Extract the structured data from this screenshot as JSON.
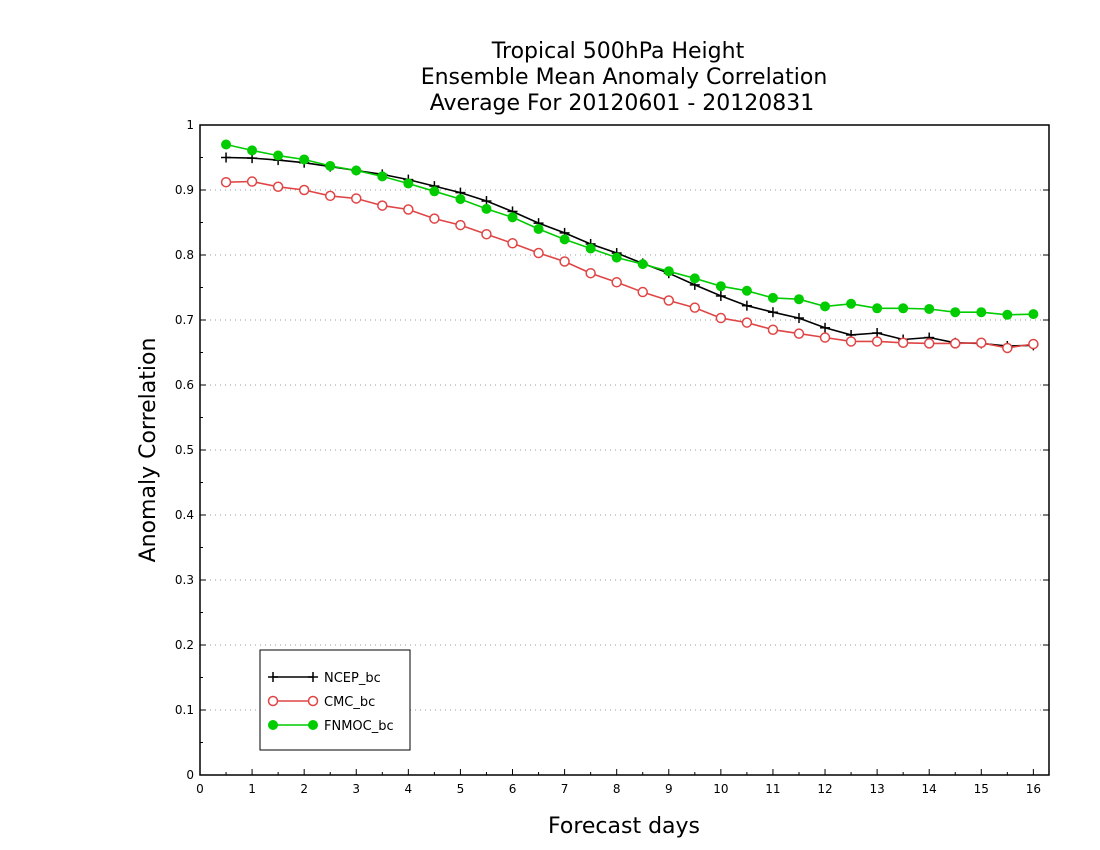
{
  "chart_data": {
    "type": "line",
    "title": [
      "Tropical 500hPa Height",
      "Ensemble Mean Anomaly Correlation",
      "Average For 20120601 - 20120831"
    ],
    "xlabel": "Forecast days",
    "ylabel": "Anomaly Correlation",
    "xlim": [
      0,
      16.3
    ],
    "ylim": [
      0,
      1
    ],
    "xticks": [
      "0",
      "1",
      "2",
      "3",
      "4",
      "5",
      "6",
      "7",
      "8",
      "9",
      "10",
      "11",
      "12",
      "13",
      "14",
      "15",
      "16"
    ],
    "yticks": [
      "0",
      "0.1",
      "0.2",
      "0.3",
      "0.4",
      "0.5",
      "0.6",
      "0.7",
      "0.8",
      "0.9",
      "1"
    ],
    "grid": "horizontal-dotted",
    "legend_position": "bottom-left",
    "x": [
      0.5,
      1,
      1.5,
      2,
      2.5,
      3,
      3.5,
      4,
      4.5,
      5,
      5.5,
      6,
      6.5,
      7,
      7.5,
      8,
      8.5,
      9,
      9.5,
      10,
      10.5,
      11,
      11.5,
      12,
      12.5,
      13,
      13.5,
      14,
      14.5,
      15,
      15.5,
      16
    ],
    "series": [
      {
        "name": "NCEP_bc",
        "color": "#000000",
        "marker": "plus",
        "values": [
          0.95,
          0.949,
          0.946,
          0.942,
          0.936,
          0.93,
          0.924,
          0.916,
          0.906,
          0.896,
          0.883,
          0.867,
          0.849,
          0.834,
          0.817,
          0.803,
          0.787,
          0.772,
          0.754,
          0.737,
          0.722,
          0.712,
          0.703,
          0.688,
          0.677,
          0.68,
          0.67,
          0.673,
          0.665,
          0.664,
          0.66,
          0.661
        ]
      },
      {
        "name": "CMC_bc",
        "color": "#e04545",
        "marker": "open-circle",
        "values": [
          0.912,
          0.913,
          0.905,
          0.9,
          0.891,
          0.887,
          0.876,
          0.87,
          0.856,
          0.846,
          0.832,
          0.818,
          0.803,
          0.79,
          0.772,
          0.758,
          0.743,
          0.73,
          0.719,
          0.703,
          0.696,
          0.685,
          0.679,
          0.673,
          0.667,
          0.667,
          0.665,
          0.664,
          0.664,
          0.665,
          0.657,
          0.663
        ]
      },
      {
        "name": "FNMOC_bc",
        "color": "#00cc00",
        "marker": "filled-circle",
        "values": [
          0.97,
          0.961,
          0.953,
          0.947,
          0.937,
          0.93,
          0.921,
          0.91,
          0.898,
          0.886,
          0.871,
          0.858,
          0.84,
          0.824,
          0.81,
          0.796,
          0.786,
          0.775,
          0.764,
          0.752,
          0.745,
          0.734,
          0.732,
          0.721,
          0.725,
          0.718,
          0.718,
          0.717,
          0.712,
          0.712,
          0.708,
          0.709
        ]
      }
    ]
  }
}
